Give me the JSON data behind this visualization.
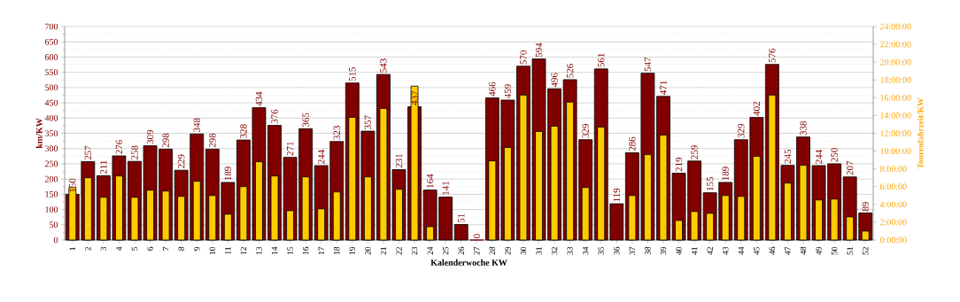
{
  "chart_data": {
    "type": "bar",
    "xlabel": "Kalenderwoche KW",
    "ylabel": "km/KW",
    "y2label": "Tourenfahrzeit/KW",
    "categories": [
      "1",
      "2",
      "3",
      "4",
      "5",
      "6",
      "7",
      "8",
      "9",
      "10",
      "11",
      "12",
      "13",
      "14",
      "15",
      "16",
      "17",
      "18",
      "19",
      "20",
      "21",
      "22",
      "23",
      "24",
      "25",
      "26",
      "27",
      "28",
      "29",
      "30",
      "31",
      "32",
      "33",
      "34",
      "35",
      "36",
      "37",
      "38",
      "39",
      "40",
      "41",
      "42",
      "43",
      "44",
      "45",
      "46",
      "47",
      "48",
      "49",
      "50",
      "51",
      "52"
    ],
    "series": [
      {
        "color": "#800000",
        "values": [
          150,
          257,
          211,
          276,
          258,
          309,
          298,
          229,
          348,
          298,
          189,
          328,
          434,
          376,
          271,
          365,
          244,
          323,
          515,
          357,
          543,
          231,
          437,
          164,
          141,
          51,
          0,
          466,
          459,
          570,
          594,
          496,
          526,
          329,
          561,
          119,
          286,
          547,
          471,
          219,
          259,
          155,
          189,
          329,
          402,
          576,
          245,
          338,
          244,
          250,
          207,
          89
        ],
        "value_labels": [
          "150",
          "257",
          "211",
          "276",
          "258",
          "309",
          "298",
          "229",
          "348",
          "298",
          "189",
          "328",
          "434",
          "376",
          "271",
          "365",
          "244",
          "323",
          "515",
          "357",
          "543",
          "231",
          "437",
          "164",
          "141",
          "51",
          "0",
          "466",
          "459",
          "570",
          "594",
          "496",
          "526",
          "329",
          "561",
          "119",
          "286",
          "547",
          "471",
          "219",
          "259",
          "155",
          "189",
          "329",
          "402",
          "576",
          "245",
          "338",
          "244",
          "250",
          "207",
          "89"
        ]
      },
      {
        "color": "#ffcc00",
        "axis": "y2",
        "values": [
          5.9,
          7.0,
          4.8,
          7.2,
          4.8,
          5.6,
          5.5,
          4.9,
          6.6,
          5.0,
          2.9,
          6.0,
          8.8,
          7.2,
          3.3,
          7.1,
          3.5,
          5.4,
          13.8,
          7.1,
          14.8,
          5.7,
          17.3,
          1.5,
          null,
          null,
          null,
          8.9,
          10.4,
          16.3,
          12.2,
          12.8,
          15.5,
          5.9,
          12.7,
          null,
          5.0,
          9.6,
          11.8,
          2.2,
          3.2,
          3.0,
          5.0,
          4.9,
          9.4,
          16.3,
          6.4,
          8.4,
          4.5,
          4.6,
          2.6,
          1.0
        ]
      }
    ],
    "ylim": [
      0,
      700
    ],
    "yticks": [
      0,
      50,
      100,
      150,
      200,
      250,
      300,
      350,
      400,
      450,
      500,
      550,
      600,
      650,
      700
    ],
    "y2lim": [
      0,
      24
    ],
    "y2ticks": [
      {
        "value": 0,
        "label": "0:00:00"
      },
      {
        "value": 2,
        "label": "2:00:00"
      },
      {
        "value": 4,
        "label": "4:00:00"
      },
      {
        "value": 6,
        "label": "6:00:00"
      },
      {
        "value": 8,
        "label": "8:00:00"
      },
      {
        "value": 10,
        "label": "10:00:00"
      },
      {
        "value": 12,
        "label": "12:00:00"
      },
      {
        "value": 14,
        "label": "14:00:00"
      },
      {
        "value": 16,
        "label": "16:00:00"
      },
      {
        "value": 18,
        "label": "18:00:00"
      },
      {
        "value": 20,
        "label": "20:00:00"
      },
      {
        "value": 22,
        "label": "22:00:00"
      },
      {
        "value": 24,
        "label": "24:00:00"
      }
    ],
    "grid": "y"
  }
}
